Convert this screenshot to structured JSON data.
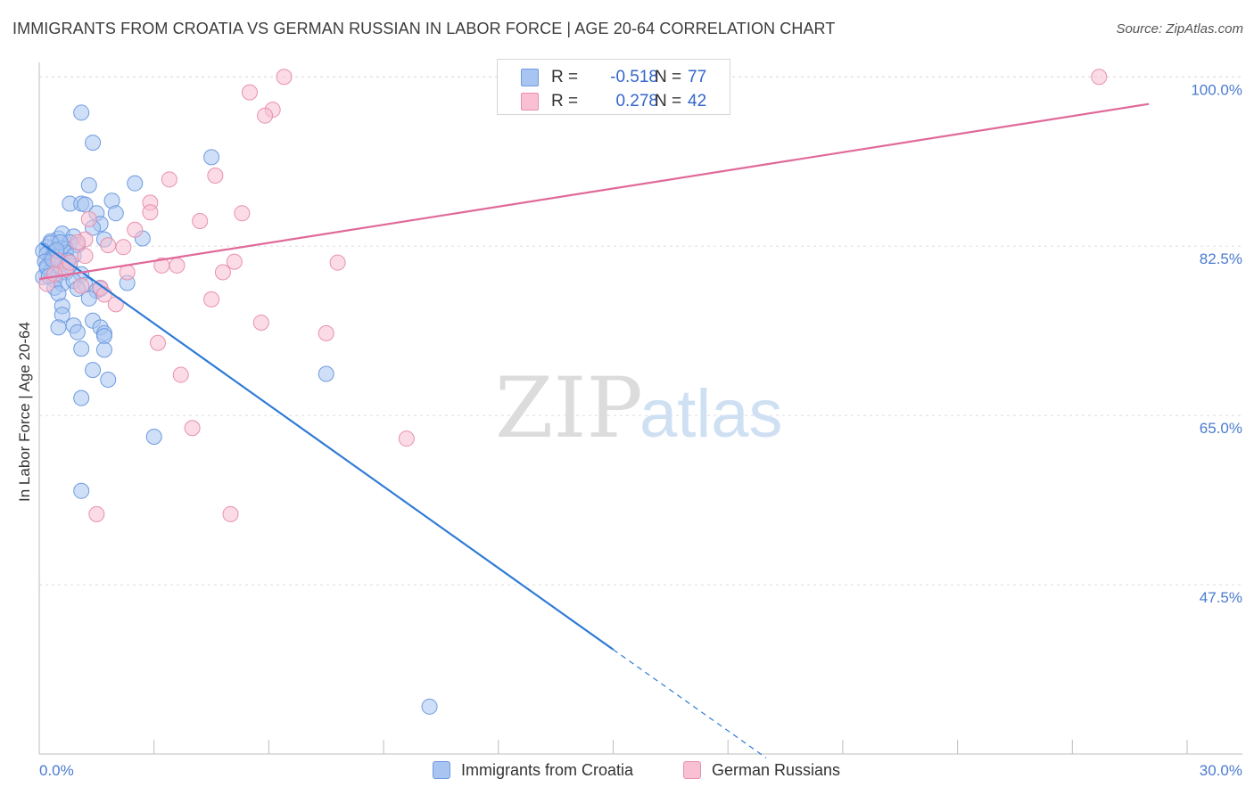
{
  "header": {
    "title": "IMMIGRANTS FROM CROATIA VS GERMAN RUSSIAN IN LABOR FORCE | AGE 20-64 CORRELATION CHART",
    "source": "Source: ZipAtlas.com"
  },
  "watermark": {
    "zip": "ZIP",
    "atlas": "atlas"
  },
  "legend_top": {
    "rows": [
      {
        "r_label": "R = ",
        "r_value": "-0.518",
        "n_label": "N = ",
        "n_value": "77",
        "color": "#a8c4f0",
        "border": "#6f9be0"
      },
      {
        "r_label": "R = ",
        "r_value": "0.278",
        "n_label": "N = ",
        "n_value": "42",
        "color": "#f8c0d2",
        "border": "#e890ad"
      }
    ]
  },
  "legend_bottom": {
    "items": [
      {
        "label": "Immigrants from Croatia",
        "color": "#a8c4f0",
        "border": "#6f9be0"
      },
      {
        "label": "German Russians",
        "color": "#f8c0d2",
        "border": "#e890ad"
      }
    ]
  },
  "chart_data": {
    "type": "scatter",
    "title": "IMMIGRANTS FROM CROATIA VS GERMAN RUSSIAN IN LABOR FORCE | AGE 20-64 CORRELATION CHART",
    "xlabel": "",
    "ylabel": "In Labor Force | Age 20-64",
    "xlim": [
      0,
      30
    ],
    "ylim": [
      30,
      101.5
    ],
    "x_tick_labels": [
      {
        "value": 0,
        "label": "0.0%"
      },
      {
        "value": 30,
        "label": "30.0%"
      }
    ],
    "y_tick_labels": [
      {
        "value": 100,
        "label": "100.0%"
      },
      {
        "value": 82.5,
        "label": "82.5%"
      },
      {
        "value": 65,
        "label": "65.0%"
      },
      {
        "value": 47.5,
        "label": "47.5%"
      }
    ],
    "x_minor_ticks": [
      3,
      6,
      9,
      12,
      15,
      18,
      21,
      24,
      27,
      30
    ],
    "series": [
      {
        "name": "Immigrants from Croatia",
        "color": "#a8c4f0",
        "stroke": "#6f9be0",
        "line_color": "#2e7ad6",
        "trend": {
          "x0": 0.05,
          "y0": 82.8,
          "x1": 15.0,
          "y1": 40.8,
          "dash_to_x": 19.0,
          "dash_to_y": 29.6
        },
        "points": [
          [
            1.1,
            96.3
          ],
          [
            1.4,
            93.2
          ],
          [
            4.5,
            91.7
          ],
          [
            2.5,
            89.0
          ],
          [
            1.3,
            88.8
          ],
          [
            0.8,
            86.9
          ],
          [
            1.1,
            86.9
          ],
          [
            1.9,
            87.2
          ],
          [
            1.2,
            86.8
          ],
          [
            1.5,
            85.9
          ],
          [
            2.0,
            85.9
          ],
          [
            1.6,
            84.8
          ],
          [
            1.4,
            84.4
          ],
          [
            2.7,
            83.3
          ],
          [
            1.7,
            83.2
          ],
          [
            0.5,
            83.3
          ],
          [
            0.6,
            83.8
          ],
          [
            0.9,
            83.5
          ],
          [
            0.3,
            83.0
          ],
          [
            0.8,
            82.9
          ],
          [
            0.2,
            82.4
          ],
          [
            0.6,
            82.3
          ],
          [
            1.0,
            82.6
          ],
          [
            0.3,
            82.8
          ],
          [
            0.7,
            82.2
          ],
          [
            0.1,
            82.0
          ],
          [
            0.2,
            81.7
          ],
          [
            0.4,
            81.9
          ],
          [
            0.5,
            81.4
          ],
          [
            0.7,
            81.8
          ],
          [
            0.9,
            81.5
          ],
          [
            0.3,
            81.2
          ],
          [
            0.15,
            80.9
          ],
          [
            0.4,
            80.6
          ],
          [
            0.6,
            80.7
          ],
          [
            0.8,
            80.5
          ],
          [
            0.2,
            80.2
          ],
          [
            0.3,
            79.9
          ],
          [
            0.5,
            79.6
          ],
          [
            0.7,
            79.8
          ],
          [
            1.1,
            79.6
          ],
          [
            0.1,
            79.3
          ],
          [
            0.4,
            79.0
          ],
          [
            0.6,
            78.6
          ],
          [
            0.9,
            78.9
          ],
          [
            1.2,
            78.5
          ],
          [
            2.3,
            78.7
          ],
          [
            0.4,
            78.2
          ],
          [
            1.0,
            78.1
          ],
          [
            0.5,
            77.6
          ],
          [
            1.5,
            77.9
          ],
          [
            1.6,
            78.1
          ],
          [
            1.3,
            77.1
          ],
          [
            0.6,
            76.3
          ],
          [
            0.6,
            75.4
          ],
          [
            1.4,
            74.8
          ],
          [
            0.9,
            74.3
          ],
          [
            0.5,
            74.1
          ],
          [
            1.6,
            74.1
          ],
          [
            1.7,
            73.5
          ],
          [
            1.0,
            73.6
          ],
          [
            1.7,
            73.2
          ],
          [
            1.1,
            71.9
          ],
          [
            1.7,
            71.8
          ],
          [
            1.4,
            69.7
          ],
          [
            1.8,
            68.7
          ],
          [
            7.5,
            69.3
          ],
          [
            1.1,
            66.8
          ],
          [
            3.0,
            62.8
          ],
          [
            1.1,
            57.2
          ],
          [
            10.2,
            34.9
          ],
          [
            0.2,
            80.4
          ],
          [
            0.35,
            81.1
          ],
          [
            0.55,
            82.9
          ],
          [
            0.75,
            81.0
          ],
          [
            0.25,
            79.4
          ],
          [
            0.45,
            82.1
          ]
        ]
      },
      {
        "name": "German Russians",
        "color": "#f8c0d2",
        "stroke": "#e890ad",
        "line_color": "#e0699a",
        "trend": {
          "x0": 0.0,
          "y0": 79.1,
          "x1": 29.0,
          "y1": 97.2
        },
        "points": [
          [
            6.4,
            100.0
          ],
          [
            27.7,
            100.0
          ],
          [
            5.5,
            98.4
          ],
          [
            6.1,
            96.6
          ],
          [
            5.9,
            96.0
          ],
          [
            4.6,
            89.8
          ],
          [
            3.4,
            89.4
          ],
          [
            2.9,
            87.0
          ],
          [
            2.9,
            86.0
          ],
          [
            5.3,
            85.9
          ],
          [
            4.2,
            85.1
          ],
          [
            1.3,
            85.3
          ],
          [
            2.5,
            84.2
          ],
          [
            1.2,
            83.2
          ],
          [
            1.0,
            82.9
          ],
          [
            1.8,
            82.6
          ],
          [
            2.2,
            82.4
          ],
          [
            1.2,
            81.5
          ],
          [
            0.5,
            81.0
          ],
          [
            5.1,
            80.9
          ],
          [
            7.8,
            80.8
          ],
          [
            3.2,
            80.5
          ],
          [
            3.6,
            80.5
          ],
          [
            0.7,
            80.1
          ],
          [
            2.3,
            79.8
          ],
          [
            4.8,
            79.8
          ],
          [
            1.1,
            78.4
          ],
          [
            0.2,
            78.6
          ],
          [
            1.6,
            78.2
          ],
          [
            1.7,
            77.5
          ],
          [
            4.5,
            77.0
          ],
          [
            2.0,
            76.5
          ],
          [
            5.8,
            74.6
          ],
          [
            7.5,
            73.5
          ],
          [
            3.1,
            72.5
          ],
          [
            3.7,
            69.2
          ],
          [
            4.0,
            63.7
          ],
          [
            9.6,
            62.6
          ],
          [
            1.5,
            54.8
          ],
          [
            5.0,
            54.8
          ],
          [
            0.4,
            79.6
          ],
          [
            0.8,
            80.8
          ]
        ]
      }
    ]
  }
}
